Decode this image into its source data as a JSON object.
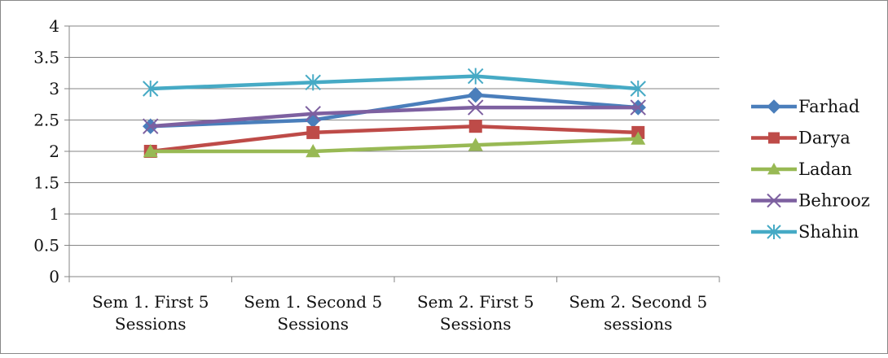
{
  "chart_data": {
    "type": "line",
    "categories": [
      [
        "Sem 1. First 5",
        "Sessions"
      ],
      [
        "Sem 1. Second 5",
        "Sessions"
      ],
      [
        "Sem 2. First 5",
        "Sessions"
      ],
      [
        "Sem 2. Second 5",
        "sessions"
      ]
    ],
    "ylim": [
      0,
      4
    ],
    "yticks": [
      "0",
      "0.5",
      "1",
      "1.5",
      "2",
      "2.5",
      "3",
      "3.5",
      "4"
    ],
    "ytick_values": [
      0,
      0.5,
      1,
      1.5,
      2,
      2.5,
      3,
      3.5,
      4
    ],
    "grid": true,
    "legend_position": "right",
    "series": [
      {
        "name": "Farhad",
        "values": [
          2.4,
          2.5,
          2.9,
          2.7
        ],
        "color": "#4A7EBB",
        "marker": "diamond"
      },
      {
        "name": "Darya",
        "values": [
          2.0,
          2.3,
          2.4,
          2.3
        ],
        "color": "#BE4B48",
        "marker": "square"
      },
      {
        "name": "Ladan",
        "values": [
          2.0,
          2.0,
          2.1,
          2.2
        ],
        "color": "#98B954",
        "marker": "triangle"
      },
      {
        "name": "Behrooz",
        "values": [
          2.4,
          2.6,
          2.7,
          2.7
        ],
        "color": "#7D60A0",
        "marker": "x"
      },
      {
        "name": "Shahin",
        "values": [
          3.0,
          3.1,
          3.2,
          3.0
        ],
        "color": "#46AAC5",
        "marker": "star"
      }
    ]
  }
}
